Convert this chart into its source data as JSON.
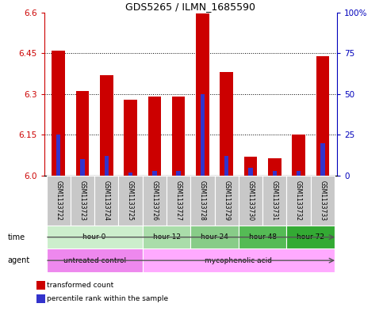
{
  "title": "GDS5265 / ILMN_1685590",
  "samples": [
    "GSM1133722",
    "GSM1133723",
    "GSM1133724",
    "GSM1133725",
    "GSM1133726",
    "GSM1133727",
    "GSM1133728",
    "GSM1133729",
    "GSM1133730",
    "GSM1133731",
    "GSM1133732",
    "GSM1133733"
  ],
  "transformed_counts": [
    6.46,
    6.31,
    6.37,
    6.28,
    6.29,
    6.29,
    6.595,
    6.38,
    6.07,
    6.065,
    6.15,
    6.44
  ],
  "percentile_ranks": [
    25,
    10,
    12,
    2,
    3,
    3,
    50,
    12,
    5,
    3,
    3,
    20
  ],
  "ylim_left": [
    6.0,
    6.6
  ],
  "ylim_right": [
    0,
    100
  ],
  "yticks_left": [
    6.0,
    6.15,
    6.3,
    6.45,
    6.6
  ],
  "yticks_right": [
    0,
    25,
    50,
    75,
    100
  ],
  "bar_color": "#cc0000",
  "percentile_color": "#3333cc",
  "left_axis_color": "#cc0000",
  "right_axis_color": "#0000bb",
  "base_value": 6.0,
  "time_groups": [
    {
      "label": "hour 0",
      "start": 0,
      "end": 3,
      "color": "#cceecc"
    },
    {
      "label": "hour 12",
      "start": 4,
      "end": 5,
      "color": "#aaddaa"
    },
    {
      "label": "hour 24",
      "start": 6,
      "end": 7,
      "color": "#88cc88"
    },
    {
      "label": "hour 48",
      "start": 8,
      "end": 9,
      "color": "#55bb55"
    },
    {
      "label": "hour 72",
      "start": 10,
      "end": 11,
      "color": "#33aa33"
    }
  ],
  "agent_groups": [
    {
      "label": "untreated control",
      "start": 0,
      "end": 3,
      "color": "#ee88ee"
    },
    {
      "label": "mycophenolic acid",
      "start": 4,
      "end": 11,
      "color": "#ffaaff"
    }
  ],
  "time_row_color_light": "#cceecc",
  "agent_row_color_pink": "#ee88ee"
}
